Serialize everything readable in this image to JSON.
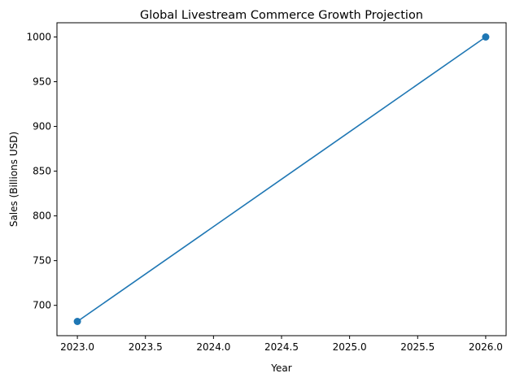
{
  "chart_data": {
    "type": "line",
    "title": "Global Livestream Commerce Growth Projection",
    "xlabel": "Year",
    "ylabel": "Sales (Billions USD)",
    "x": [
      2023,
      2026
    ],
    "series": [
      {
        "values": [
          682,
          1000
        ],
        "color": "#1f77b4",
        "marker": "circle"
      }
    ],
    "xlim": [
      2022.85,
      2026.15
    ],
    "ylim": [
      666.1,
      1015.9
    ],
    "xticks": [
      2023.0,
      2023.5,
      2024.0,
      2024.5,
      2025.0,
      2025.5,
      2026.0
    ],
    "xtick_labels": [
      "2023.0",
      "2023.5",
      "2024.0",
      "2024.5",
      "2025.0",
      "2025.5",
      "2026.0"
    ],
    "yticks": [
      700,
      750,
      800,
      850,
      900,
      950,
      1000
    ],
    "ytick_labels": [
      "700",
      "750",
      "800",
      "850",
      "900",
      "950",
      "1000"
    ],
    "grid": false,
    "legend": "none"
  }
}
